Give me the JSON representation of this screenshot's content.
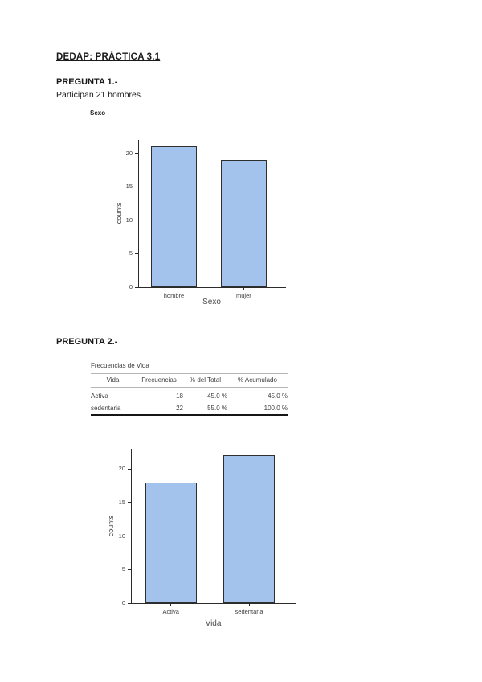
{
  "doc": {
    "title": "DEDAP: PRÁCTICA 3.1",
    "question1": {
      "heading": "PREGUNTA 1.-",
      "body": "Participan 21 hombres."
    },
    "question2": {
      "heading": "PREGUNTA 2.-"
    }
  },
  "chart_data": [
    {
      "type": "bar",
      "section_title": "Sexo",
      "categories": [
        "hombre",
        "mujer"
      ],
      "values": [
        21,
        19
      ],
      "title": "Sexo",
      "xlabel": "Sexo",
      "ylabel": "counts",
      "ylim": [
        0,
        22
      ],
      "yticks": [
        0,
        5,
        10,
        15,
        20
      ],
      "grid": "off",
      "legend": "none",
      "bar_fill": "#a4c3ec",
      "bar_border": "#2f2f2f"
    },
    {
      "type": "bar",
      "section_title": "",
      "categories": [
        "Activa",
        "sedentaria"
      ],
      "values": [
        18,
        22
      ],
      "title": "",
      "xlabel": "Vida",
      "ylabel": "counts",
      "ylim": [
        0,
        23
      ],
      "yticks": [
        0,
        5,
        10,
        15,
        20
      ],
      "grid": "off",
      "legend": "none",
      "bar_fill": "#a4c3ec",
      "bar_border": "#2f2f2f"
    }
  ],
  "table": {
    "caption": "Frecuencias de Vida",
    "columns": [
      "Vida",
      "Frecuencias",
      "% del Total",
      "% Acumulado"
    ],
    "rows": [
      [
        "Activa",
        "18",
        "45.0 %",
        "45.0 %"
      ],
      [
        "sedentaria",
        "22",
        "55.0 %",
        "100.0 %"
      ]
    ]
  }
}
